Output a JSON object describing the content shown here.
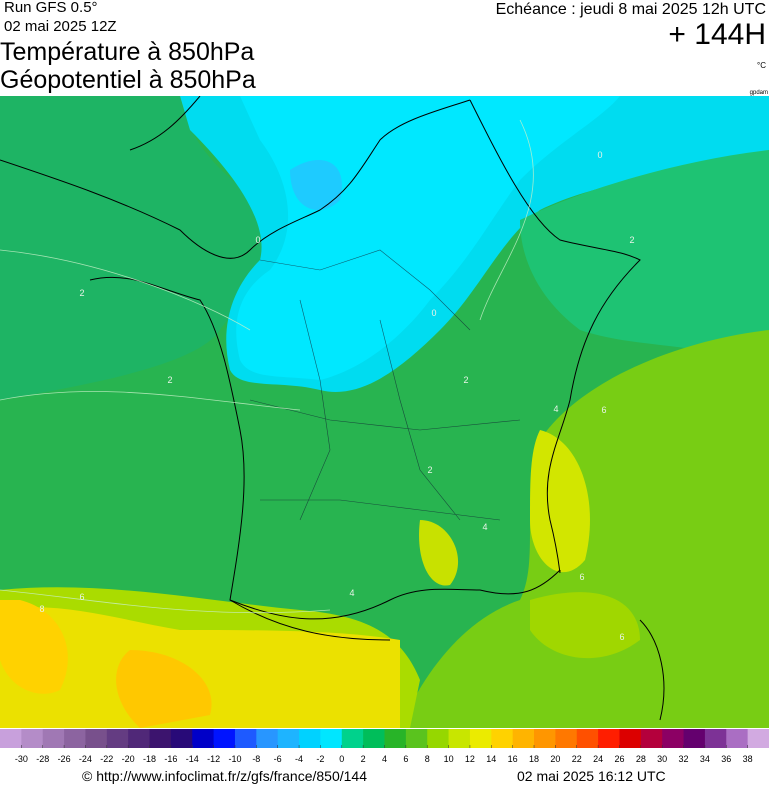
{
  "header": {
    "run": "Run GFS 0.5°",
    "run_date": "02 mai 2025 12Z",
    "title_1": "Température à 850hPa",
    "title_2": "Géopotentiel à 850hPa",
    "echeance": "Echéance : jeudi 8 mai 2025 12h UTC",
    "lead": "+ 144H",
    "unit": "°C",
    "geo_unit": "gpdam"
  },
  "contour_labels": [
    0,
    0,
    0,
    2,
    2,
    2,
    2,
    2,
    4,
    4,
    4,
    6,
    6,
    6,
    6,
    8
  ],
  "colorbar": {
    "ticks": [
      -30,
      -28,
      -26,
      -24,
      -22,
      -20,
      -18,
      -16,
      -14,
      -12,
      -10,
      -8,
      -6,
      -4,
      -2,
      0,
      2,
      4,
      6,
      8,
      10,
      12,
      14,
      16,
      18,
      20,
      22,
      24,
      26,
      28,
      30,
      32,
      34,
      36,
      38
    ],
    "colors": [
      "#c8a0dc",
      "#b48cc8",
      "#a078b4",
      "#8c64a0",
      "#78508c",
      "#643c82",
      "#502878",
      "#3c146e",
      "#280a78",
      "#0000c8",
      "#0014ff",
      "#1e5aff",
      "#2896ff",
      "#1eb4ff",
      "#00d2ff",
      "#00e6ff",
      "#00d28c",
      "#00be5a",
      "#28b428",
      "#5ac31e",
      "#96d700",
      "#c8e600",
      "#ebeb00",
      "#ffd200",
      "#ffb400",
      "#ff9600",
      "#ff7800",
      "#ff5000",
      "#ff1e00",
      "#dc0000",
      "#b4003c",
      "#8c0064",
      "#64006e",
      "#7d3296",
      "#aa6ec3",
      "#d2aae1"
    ]
  },
  "footer": {
    "source": "© http://www.infoclimat.fr/z/gfs/france/850/144",
    "generated": "02 mai 2025 16:12 UTC"
  }
}
